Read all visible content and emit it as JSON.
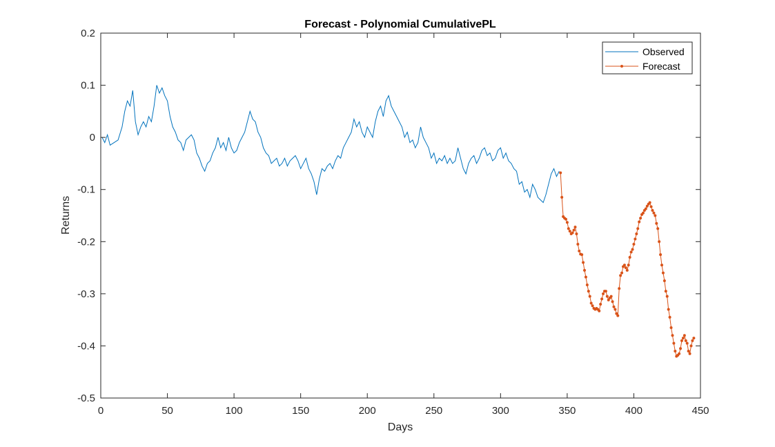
{
  "colors": {
    "observed": "#0072BD",
    "forecast": "#D95319",
    "axis": "#262626",
    "background": "#ffffff"
  },
  "chart_data": {
    "type": "line",
    "title": "Forecast - Polynomial CumulativePL",
    "xlabel": "Days",
    "ylabel": "Returns",
    "xlim": [
      0,
      450
    ],
    "ylim": [
      -0.5,
      0.2
    ],
    "xticks": [
      0,
      50,
      100,
      150,
      200,
      250,
      300,
      350,
      400,
      450
    ],
    "xtick_labels": [
      "0",
      "50",
      "100",
      "150",
      "200",
      "250",
      "300",
      "350",
      "400",
      "450"
    ],
    "yticks": [
      -0.5,
      -0.4,
      -0.3,
      -0.2,
      -0.1,
      0,
      0.1,
      0.2
    ],
    "ytick_labels": [
      "-0.5",
      "-0.4",
      "-0.3",
      "-0.2",
      "-0.1",
      "0",
      "0.1",
      "0.2"
    ],
    "grid": false,
    "box": true,
    "legend": {
      "position": "top-right",
      "entries": [
        "Observed",
        "Forecast"
      ]
    },
    "series": [
      {
        "name": "Observed",
        "marker": "none",
        "x": [
          1,
          3,
          5,
          7,
          10,
          13,
          16,
          18,
          20,
          22,
          24,
          26,
          28,
          30,
          32,
          34,
          36,
          38,
          40,
          42,
          44,
          46,
          48,
          50,
          52,
          54,
          56,
          58,
          60,
          62,
          64,
          66,
          68,
          70,
          72,
          74,
          76,
          78,
          80,
          82,
          84,
          86,
          88,
          90,
          92,
          94,
          96,
          98,
          100,
          102,
          104,
          106,
          108,
          110,
          112,
          114,
          116,
          118,
          120,
          122,
          124,
          126,
          128,
          130,
          132,
          134,
          136,
          138,
          140,
          142,
          144,
          146,
          148,
          150,
          152,
          154,
          156,
          158,
          160,
          162,
          164,
          166,
          168,
          170,
          172,
          174,
          176,
          178,
          180,
          182,
          184,
          186,
          188,
          190,
          192,
          194,
          196,
          198,
          200,
          202,
          204,
          206,
          208,
          210,
          212,
          214,
          216,
          218,
          220,
          222,
          224,
          226,
          228,
          230,
          232,
          234,
          236,
          238,
          240,
          242,
          244,
          246,
          248,
          250,
          252,
          254,
          256,
          258,
          260,
          262,
          264,
          266,
          268,
          270,
          272,
          274,
          276,
          278,
          280,
          282,
          284,
          286,
          288,
          290,
          292,
          294,
          296,
          298,
          300,
          302,
          304,
          306,
          308,
          310,
          312,
          314,
          316,
          318,
          320,
          322,
          324,
          326,
          328,
          330,
          332,
          334,
          336,
          338,
          340,
          342,
          344
        ],
        "y": [
          0.0,
          -0.01,
          0.005,
          -0.015,
          -0.01,
          -0.005,
          0.02,
          0.05,
          0.07,
          0.06,
          0.09,
          0.03,
          0.005,
          0.02,
          0.03,
          0.02,
          0.04,
          0.03,
          0.06,
          0.1,
          0.085,
          0.095,
          0.08,
          0.07,
          0.04,
          0.02,
          0.01,
          -0.005,
          -0.01,
          -0.025,
          -0.005,
          0.0,
          0.005,
          -0.005,
          -0.03,
          -0.04,
          -0.055,
          -0.065,
          -0.05,
          -0.045,
          -0.03,
          -0.02,
          0.0,
          -0.02,
          -0.01,
          -0.025,
          0.0,
          -0.02,
          -0.03,
          -0.025,
          -0.01,
          0.0,
          0.01,
          0.03,
          0.05,
          0.035,
          0.03,
          0.01,
          0.0,
          -0.02,
          -0.03,
          -0.035,
          -0.05,
          -0.045,
          -0.04,
          -0.055,
          -0.05,
          -0.04,
          -0.055,
          -0.045,
          -0.04,
          -0.035,
          -0.045,
          -0.06,
          -0.05,
          -0.04,
          -0.06,
          -0.07,
          -0.085,
          -0.11,
          -0.08,
          -0.06,
          -0.065,
          -0.055,
          -0.05,
          -0.06,
          -0.045,
          -0.035,
          -0.04,
          -0.02,
          -0.01,
          0.0,
          0.01,
          0.035,
          0.02,
          0.03,
          0.01,
          0.0,
          0.02,
          0.01,
          0.0,
          0.03,
          0.05,
          0.06,
          0.04,
          0.07,
          0.08,
          0.06,
          0.05,
          0.04,
          0.03,
          0.02,
          0.0,
          0.01,
          -0.01,
          -0.005,
          -0.02,
          -0.01,
          0.02,
          0.0,
          -0.01,
          -0.02,
          -0.04,
          -0.03,
          -0.05,
          -0.04,
          -0.045,
          -0.035,
          -0.05,
          -0.04,
          -0.05,
          -0.045,
          -0.02,
          -0.04,
          -0.06,
          -0.07,
          -0.05,
          -0.04,
          -0.035,
          -0.05,
          -0.04,
          -0.025,
          -0.02,
          -0.035,
          -0.03,
          -0.045,
          -0.04,
          -0.025,
          -0.02,
          -0.04,
          -0.03,
          -0.045,
          -0.05,
          -0.06,
          -0.065,
          -0.09,
          -0.085,
          -0.105,
          -0.1,
          -0.115,
          -0.09,
          -0.1,
          -0.115,
          -0.12,
          -0.125,
          -0.11,
          -0.09,
          -0.07,
          -0.06,
          -0.075,
          -0.065
        ]
      },
      {
        "name": "Forecast",
        "marker": "dot",
        "x": [
          345,
          346,
          347,
          348,
          349,
          350,
          351,
          352,
          353,
          354,
          355,
          356,
          357,
          358,
          359,
          360,
          361,
          362,
          363,
          364,
          365,
          366,
          367,
          368,
          369,
          370,
          371,
          372,
          373,
          374,
          375,
          376,
          377,
          378,
          379,
          380,
          381,
          382,
          383,
          384,
          385,
          386,
          387,
          388,
          389,
          390,
          391,
          392,
          393,
          394,
          395,
          396,
          397,
          398,
          399,
          400,
          401,
          402,
          403,
          404,
          405,
          406,
          407,
          408,
          409,
          410,
          411,
          412,
          413,
          414,
          415,
          416,
          417,
          418,
          419,
          420,
          421,
          422,
          423,
          424,
          425,
          426,
          427,
          428,
          429,
          430,
          431,
          432,
          433,
          434,
          435,
          436,
          437,
          438,
          439,
          440,
          441,
          442,
          443,
          444,
          445
        ],
        "y": [
          -0.068,
          -0.115,
          -0.152,
          -0.155,
          -0.157,
          -0.163,
          -0.175,
          -0.18,
          -0.185,
          -0.183,
          -0.178,
          -0.172,
          -0.185,
          -0.205,
          -0.218,
          -0.224,
          -0.225,
          -0.24,
          -0.255,
          -0.268,
          -0.283,
          -0.295,
          -0.305,
          -0.318,
          -0.323,
          -0.328,
          -0.33,
          -0.328,
          -0.33,
          -0.333,
          -0.32,
          -0.31,
          -0.3,
          -0.295,
          -0.295,
          -0.305,
          -0.312,
          -0.308,
          -0.305,
          -0.315,
          -0.325,
          -0.33,
          -0.338,
          -0.342,
          -0.29,
          -0.265,
          -0.26,
          -0.248,
          -0.245,
          -0.25,
          -0.255,
          -0.245,
          -0.23,
          -0.22,
          -0.215,
          -0.205,
          -0.195,
          -0.185,
          -0.175,
          -0.162,
          -0.155,
          -0.148,
          -0.145,
          -0.14,
          -0.137,
          -0.132,
          -0.128,
          -0.125,
          -0.133,
          -0.14,
          -0.145,
          -0.15,
          -0.165,
          -0.175,
          -0.2,
          -0.225,
          -0.245,
          -0.26,
          -0.275,
          -0.295,
          -0.305,
          -0.33,
          -0.345,
          -0.365,
          -0.38,
          -0.395,
          -0.41,
          -0.42,
          -0.418,
          -0.415,
          -0.405,
          -0.39,
          -0.385,
          -0.38,
          -0.39,
          -0.395,
          -0.41,
          -0.415,
          -0.4,
          -0.39,
          -0.385
        ]
      }
    ]
  }
}
